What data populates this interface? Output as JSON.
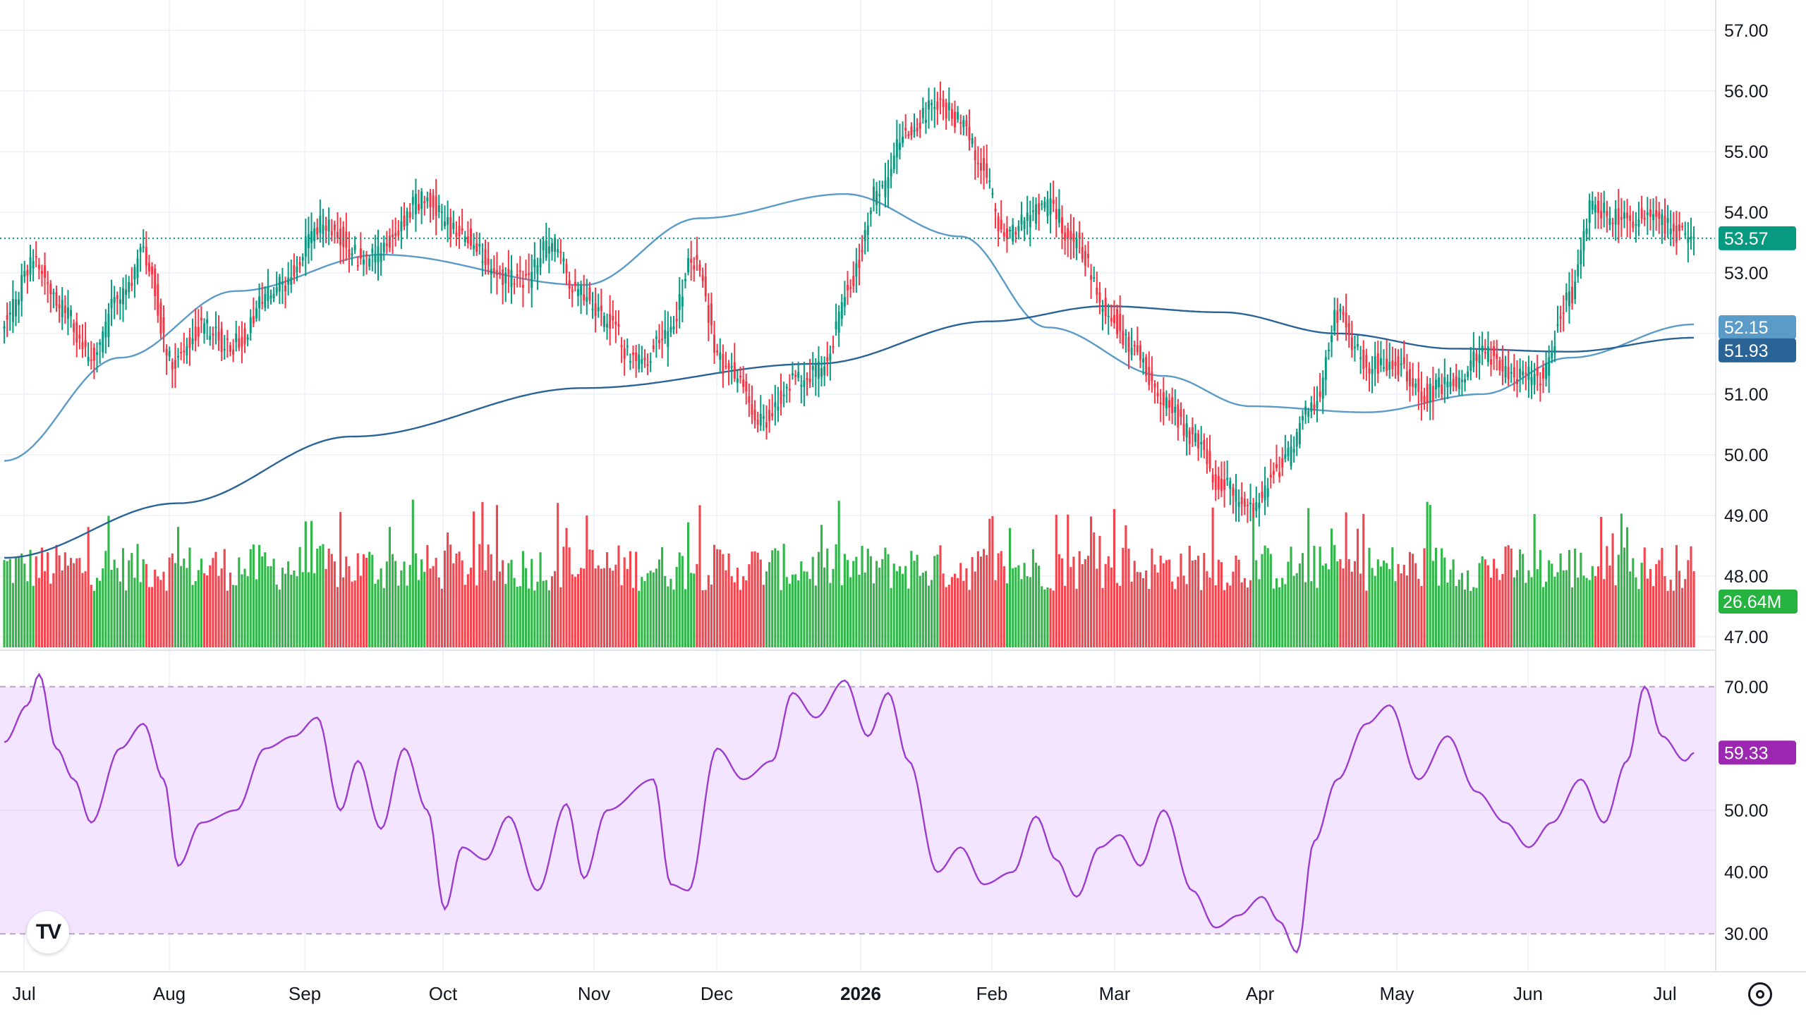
{
  "chart_data": [
    {
      "type": "candlestick",
      "title": "",
      "ylim": [
        46.8,
        57.5
      ],
      "price_axis_ticks": [
        "57.00",
        "56.00",
        "55.00",
        "54.00",
        "53.00",
        "52.00",
        "51.00",
        "50.00",
        "49.00",
        "48.00",
        "47.00"
      ],
      "x_axis_labels": [
        "Jul",
        "Aug",
        "Sep",
        "Oct",
        "Nov",
        "Dec",
        "2026",
        "Feb",
        "Mar",
        "Apr",
        "May",
        "Jun",
        "Jul"
      ],
      "last_price": "53.57",
      "moving_averages": [
        {
          "label": "52.15",
          "color": "#5b9bc7",
          "anchors": [
            [
              0,
              49.9
            ],
            [
              40,
              51.6
            ],
            [
              80,
              52.7
            ],
            [
              130,
              53.3
            ],
            [
              200,
              52.8
            ],
            [
              240,
              53.9
            ],
            [
              290,
              54.3
            ],
            [
              330,
              53.6
            ],
            [
              360,
              52.1
            ],
            [
              400,
              51.3
            ],
            [
              430,
              50.8
            ],
            [
              470,
              50.7
            ],
            [
              510,
              51.0
            ],
            [
              540,
              51.6
            ],
            [
              583,
              52.15
            ]
          ]
        },
        {
          "label": "51.93",
          "color": "#2a6496",
          "anchors": [
            [
              0,
              48.3
            ],
            [
              60,
              49.2
            ],
            [
              120,
              50.3
            ],
            [
              200,
              51.1
            ],
            [
              280,
              51.5
            ],
            [
              340,
              52.2
            ],
            [
              380,
              52.45
            ],
            [
              420,
              52.35
            ],
            [
              460,
              52.0
            ],
            [
              500,
              51.75
            ],
            [
              540,
              51.7
            ],
            [
              583,
              51.93
            ]
          ]
        }
      ],
      "candle_anchors": [
        [
          0,
          52.2
        ],
        [
          10,
          53.2
        ],
        [
          20,
          52.4
        ],
        [
          30,
          51.6
        ],
        [
          40,
          52.6
        ],
        [
          48,
          53.3
        ],
        [
          58,
          51.5
        ],
        [
          68,
          52.1
        ],
        [
          78,
          51.8
        ],
        [
          95,
          52.8
        ],
        [
          110,
          53.8
        ],
        [
          125,
          53.2
        ],
        [
          145,
          54.2
        ],
        [
          158,
          53.6
        ],
        [
          172,
          52.9
        ],
        [
          180,
          52.9
        ],
        [
          188,
          53.5
        ],
        [
          198,
          52.7
        ],
        [
          208,
          52.2
        ],
        [
          218,
          51.5
        ],
        [
          228,
          51.9
        ],
        [
          238,
          53.2
        ],
        [
          248,
          51.5
        ],
        [
          262,
          50.6
        ],
        [
          272,
          51.2
        ],
        [
          282,
          51.4
        ],
        [
          292,
          52.9
        ],
        [
          302,
          54.4
        ],
        [
          312,
          55.4
        ],
        [
          322,
          55.8
        ],
        [
          330,
          55.5
        ],
        [
          337,
          54.8
        ],
        [
          345,
          53.6
        ],
        [
          350,
          53.8
        ],
        [
          360,
          54.1
        ],
        [
          370,
          53.5
        ],
        [
          380,
          52.4
        ],
        [
          390,
          51.7
        ],
        [
          400,
          50.9
        ],
        [
          410,
          50.3
        ],
        [
          420,
          49.5
        ],
        [
          430,
          49.1
        ],
        [
          440,
          49.8
        ],
        [
          451,
          50.7
        ],
        [
          460,
          52.3
        ],
        [
          470,
          51.5
        ],
        [
          480,
          51.5
        ],
        [
          490,
          51.0
        ],
        [
          500,
          51.2
        ],
        [
          510,
          51.7
        ],
        [
          520,
          51.3
        ],
        [
          530,
          51.3
        ],
        [
          540,
          52.6
        ],
        [
          548,
          54.1
        ],
        [
          556,
          53.9
        ],
        [
          565,
          53.9
        ],
        [
          583,
          53.57
        ]
      ],
      "volume_label": "26.64M",
      "rsi": {
        "label": "59.33",
        "color": "#9c3ccf",
        "ylim": [
          25,
          75
        ],
        "ticks": [
          "70.00",
          "50.00",
          "40.00",
          "30.00"
        ],
        "bands": [
          30,
          70
        ],
        "anchors": [
          [
            0,
            61
          ],
          [
            8,
            67
          ],
          [
            12,
            72
          ],
          [
            18,
            60
          ],
          [
            24,
            55
          ],
          [
            30,
            48
          ],
          [
            40,
            60
          ],
          [
            48,
            64
          ],
          [
            55,
            55
          ],
          [
            60,
            41
          ],
          [
            68,
            48
          ],
          [
            80,
            50
          ],
          [
            90,
            60
          ],
          [
            100,
            62
          ],
          [
            108,
            65
          ],
          [
            116,
            50
          ],
          [
            122,
            58
          ],
          [
            130,
            47
          ],
          [
            138,
            60
          ],
          [
            146,
            50
          ],
          [
            152,
            34
          ],
          [
            158,
            44
          ],
          [
            166,
            42
          ],
          [
            174,
            49
          ],
          [
            184,
            37
          ],
          [
            194,
            51
          ],
          [
            200,
            39
          ],
          [
            208,
            50
          ],
          [
            224,
            55
          ],
          [
            230,
            38
          ],
          [
            236,
            37
          ],
          [
            246,
            60
          ],
          [
            255,
            55
          ],
          [
            265,
            58
          ],
          [
            272,
            69
          ],
          [
            280,
            65
          ],
          [
            290,
            71
          ],
          [
            298,
            62
          ],
          [
            305,
            69
          ],
          [
            312,
            58
          ],
          [
            322,
            40
          ],
          [
            330,
            44
          ],
          [
            338,
            38
          ],
          [
            348,
            40
          ],
          [
            356,
            49
          ],
          [
            363,
            42
          ],
          [
            370,
            36
          ],
          [
            378,
            44
          ],
          [
            385,
            46
          ],
          [
            392,
            41
          ],
          [
            400,
            50
          ],
          [
            410,
            37
          ],
          [
            418,
            31
          ],
          [
            426,
            33
          ],
          [
            434,
            36
          ],
          [
            440,
            32
          ],
          [
            446,
            27
          ],
          [
            452,
            45
          ],
          [
            460,
            55
          ],
          [
            470,
            64
          ],
          [
            478,
            67
          ],
          [
            488,
            55
          ],
          [
            498,
            62
          ],
          [
            508,
            53
          ],
          [
            518,
            48
          ],
          [
            526,
            44
          ],
          [
            534,
            48
          ],
          [
            544,
            55
          ],
          [
            552,
            48
          ],
          [
            560,
            58
          ],
          [
            566,
            70
          ],
          [
            572,
            62
          ],
          [
            580,
            58
          ],
          [
            583,
            59.33
          ]
        ]
      }
    }
  ]
}
